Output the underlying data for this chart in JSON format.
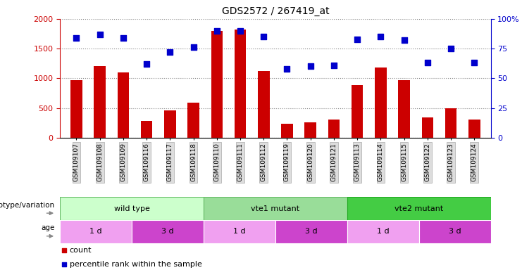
{
  "title": "GDS2572 / 267419_at",
  "samples": [
    "GSM109107",
    "GSM109108",
    "GSM109109",
    "GSM109116",
    "GSM109117",
    "GSM109118",
    "GSM109110",
    "GSM109111",
    "GSM109112",
    "GSM109119",
    "GSM109120",
    "GSM109121",
    "GSM109113",
    "GSM109114",
    "GSM109115",
    "GSM109122",
    "GSM109123",
    "GSM109124"
  ],
  "counts": [
    970,
    1200,
    1100,
    280,
    460,
    590,
    1800,
    1820,
    1120,
    230,
    260,
    310,
    880,
    1180,
    970,
    340,
    500,
    310
  ],
  "percentiles": [
    84,
    87,
    84,
    62,
    72,
    76,
    90,
    90,
    85,
    58,
    60,
    61,
    83,
    85,
    82,
    63,
    75,
    63
  ],
  "ylim_left": [
    0,
    2000
  ],
  "ylim_right": [
    0,
    100
  ],
  "yticks_left": [
    0,
    500,
    1000,
    1500,
    2000
  ],
  "yticks_right": [
    0,
    25,
    50,
    75,
    100
  ],
  "ytick_right_labels": [
    "0",
    "25",
    "50",
    "75",
    "100%"
  ],
  "bar_color": "#cc0000",
  "dot_color": "#0000cc",
  "grid_color": "#888888",
  "genotype_groups": [
    {
      "label": "wild type",
      "start": 0,
      "end": 6,
      "color": "#ccffcc",
      "border": "#66bb66"
    },
    {
      "label": "vte1 mutant",
      "start": 6,
      "end": 12,
      "color": "#99dd99",
      "border": "#66bb66"
    },
    {
      "label": "vte2 mutant",
      "start": 12,
      "end": 18,
      "color": "#44cc44",
      "border": "#22aa22"
    }
  ],
  "age_groups": [
    {
      "label": "1 d",
      "start": 0,
      "end": 3,
      "color": "#f0a0f0"
    },
    {
      "label": "3 d",
      "start": 3,
      "end": 6,
      "color": "#cc44cc"
    },
    {
      "label": "1 d",
      "start": 6,
      "end": 9,
      "color": "#f0a0f0"
    },
    {
      "label": "3 d",
      "start": 9,
      "end": 12,
      "color": "#cc44cc"
    },
    {
      "label": "1 d",
      "start": 12,
      "end": 15,
      "color": "#f0a0f0"
    },
    {
      "label": "3 d",
      "start": 15,
      "end": 18,
      "color": "#cc44cc"
    }
  ],
  "genotype_label": "genotype/variation",
  "age_label": "age",
  "legend_count": "count",
  "legend_percentile": "percentile rank within the sample",
  "bar_width": 0.5,
  "dot_size": 35
}
